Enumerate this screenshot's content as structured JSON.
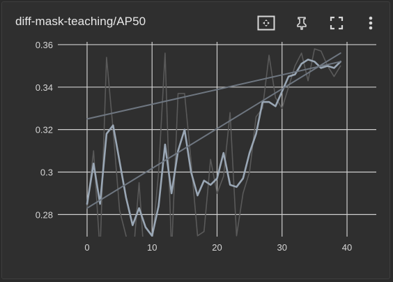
{
  "header": {
    "title": "diff-mask-teaching/AP50"
  },
  "toolbar": [
    {
      "name": "fit-domain-button",
      "icon": "fit-domain-icon"
    },
    {
      "name": "pin-button",
      "icon": "pin-icon"
    },
    {
      "name": "fullscreen-button",
      "icon": "fullscreen-icon"
    },
    {
      "name": "more-options-button",
      "icon": "more-vert-icon"
    }
  ],
  "colors": {
    "background": "#2f2f2f",
    "grid": "#cfcfcf",
    "raw_series": "#5a5a5a",
    "smoothed_series": "#9aa7b5",
    "trend_line": "#6e7680",
    "text": "#e8e8e8"
  },
  "chart_data": {
    "type": "line",
    "title": "diff-mask-teaching/AP50",
    "xlabel": "",
    "ylabel": "",
    "xlim": [
      -4.5,
      44.5
    ],
    "ylim": [
      0.2696,
      0.3613
    ],
    "x_ticks": [
      0,
      10,
      20,
      30,
      40
    ],
    "y_ticks": [
      0.28,
      0.3,
      0.32,
      0.34,
      0.36
    ],
    "x_tick_labels": [
      "0",
      "10",
      "20",
      "30",
      "40"
    ],
    "y_tick_labels": [
      "0.28",
      "0.3",
      "0.32",
      "0.34",
      "0.36"
    ],
    "grid": true,
    "legend": "none",
    "series": [
      {
        "role": "raw",
        "x": [
          0,
          1,
          2,
          3,
          4,
          5,
          6,
          7,
          8,
          9,
          10,
          11,
          12,
          13,
          14,
          15,
          16,
          17,
          18,
          19,
          20,
          21,
          22,
          23,
          24,
          25,
          26,
          27,
          28,
          29,
          30,
          31,
          32,
          33,
          34,
          35,
          36,
          37,
          38,
          39
        ],
        "values": [
          0.283,
          0.31,
          0.262,
          0.354,
          0.32,
          0.282,
          0.27,
          0.257,
          0.295,
          0.25,
          0.266,
          0.3,
          0.356,
          0.262,
          0.337,
          0.337,
          0.305,
          0.27,
          0.272,
          0.306,
          0.29,
          0.298,
          0.328,
          0.27,
          0.29,
          0.3,
          0.326,
          0.33,
          0.355,
          0.335,
          0.33,
          0.34,
          0.35,
          0.356,
          0.343,
          0.358,
          0.357,
          0.35,
          0.345,
          0.35
        ]
      },
      {
        "role": "smoothed",
        "x": [
          0,
          1,
          2,
          3,
          4,
          5,
          6,
          7,
          8,
          9,
          10,
          11,
          12,
          13,
          14,
          15,
          16,
          17,
          18,
          19,
          20,
          21,
          22,
          23,
          24,
          25,
          26,
          27,
          28,
          29,
          30,
          31,
          32,
          33,
          34,
          35,
          36,
          37,
          38,
          39
        ],
        "values": [
          0.285,
          0.304,
          0.285,
          0.318,
          0.322,
          0.305,
          0.288,
          0.275,
          0.283,
          0.274,
          0.27,
          0.284,
          0.313,
          0.29,
          0.31,
          0.32,
          0.3,
          0.289,
          0.296,
          0.294,
          0.297,
          0.309,
          0.294,
          0.293,
          0.297,
          0.309,
          0.318,
          0.333,
          0.333,
          0.331,
          0.338,
          0.345,
          0.346,
          0.351,
          0.353,
          0.352,
          0.349,
          0.35,
          0.349,
          0.352
        ]
      },
      {
        "role": "trend",
        "x": [
          0,
          39
        ],
        "values": [
          0.325,
          0.352
        ]
      },
      {
        "role": "trend",
        "x": [
          0,
          39
        ],
        "values": [
          0.283,
          0.356
        ]
      }
    ]
  }
}
